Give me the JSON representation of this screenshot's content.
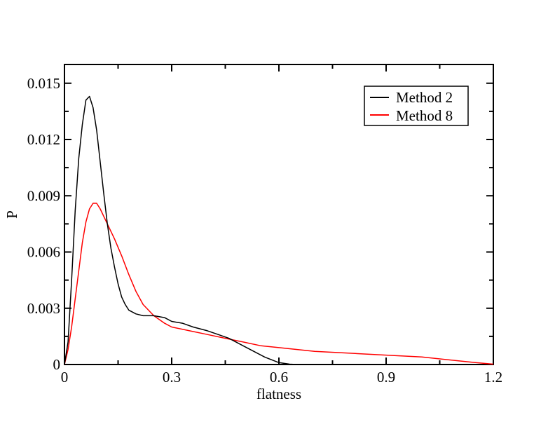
{
  "chart_data": {
    "type": "line",
    "title": "",
    "xlabel": "flatness",
    "ylabel": "P",
    "xlim": [
      0,
      1.2
    ],
    "ylim": [
      0,
      0.016
    ],
    "xticks": [
      0,
      0.3,
      0.6,
      0.9,
      1.2
    ],
    "xtick_labels": [
      "0",
      "0.3",
      "0.6",
      "0.9",
      "1.2"
    ],
    "yticks": [
      0,
      0.003,
      0.006,
      0.009,
      0.012,
      0.015
    ],
    "ytick_labels": [
      "0",
      "0.003",
      "0.006",
      "0.009",
      "0.012",
      "0.015"
    ],
    "grid": false,
    "legend_position": "top-right",
    "series": [
      {
        "name": "Method 2",
        "color": "#000000",
        "x": [
          0.0,
          0.01,
          0.02,
          0.03,
          0.04,
          0.05,
          0.06,
          0.07,
          0.08,
          0.09,
          0.1,
          0.11,
          0.12,
          0.13,
          0.14,
          0.15,
          0.16,
          0.17,
          0.18,
          0.2,
          0.22,
          0.25,
          0.28,
          0.3,
          0.33,
          0.36,
          0.4,
          0.43,
          0.46,
          0.5,
          0.53,
          0.56,
          0.6,
          0.63,
          0.65
        ],
        "y": [
          0.0,
          0.0012,
          0.0045,
          0.0082,
          0.011,
          0.0128,
          0.0141,
          0.0143,
          0.0137,
          0.0125,
          0.0108,
          0.0091,
          0.0075,
          0.0062,
          0.0052,
          0.0043,
          0.0036,
          0.0032,
          0.0029,
          0.0027,
          0.0026,
          0.0026,
          0.0025,
          0.0023,
          0.0022,
          0.002,
          0.0018,
          0.0016,
          0.0014,
          0.001,
          0.0007,
          0.0004,
          0.0001,
          2e-05,
          0.0
        ]
      },
      {
        "name": "Method 8",
        "color": "#ff0000",
        "x": [
          0.0,
          0.01,
          0.02,
          0.03,
          0.04,
          0.05,
          0.06,
          0.07,
          0.08,
          0.09,
          0.1,
          0.12,
          0.14,
          0.16,
          0.18,
          0.2,
          0.22,
          0.25,
          0.28,
          0.3,
          0.35,
          0.4,
          0.45,
          0.5,
          0.55,
          0.6,
          0.7,
          0.8,
          0.9,
          1.0,
          1.1,
          1.15,
          1.2
        ],
        "y": [
          0.0,
          0.0008,
          0.002,
          0.0035,
          0.005,
          0.0065,
          0.0076,
          0.0083,
          0.0086,
          0.0086,
          0.0083,
          0.0075,
          0.0067,
          0.0058,
          0.0048,
          0.0039,
          0.0032,
          0.0026,
          0.0022,
          0.002,
          0.0018,
          0.0016,
          0.0014,
          0.0012,
          0.001,
          0.0009,
          0.0007,
          0.0006,
          0.0005,
          0.0004,
          0.0002,
          0.0001,
          2e-05
        ]
      }
    ]
  }
}
